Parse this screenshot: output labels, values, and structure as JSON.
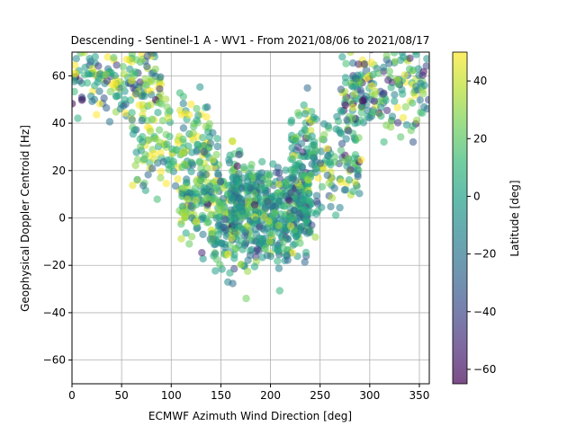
{
  "chart_data": {
    "type": "scatter",
    "title": "Descending - Sentinel-1 A - WV1 - From 2021/08/06 to 2021/08/17",
    "xlabel": "ECMWF Azimuth Wind Direction [deg]",
    "ylabel": "Geophysical Doppler Centroid [Hz]",
    "xlim": [
      0,
      360
    ],
    "ylim": [
      -70,
      70
    ],
    "xticks": [
      0,
      50,
      100,
      150,
      200,
      250,
      300,
      350
    ],
    "yticks": [
      -60,
      -40,
      -20,
      0,
      20,
      40,
      60
    ],
    "grid": true,
    "marker_alpha": 0.55,
    "colorbar": {
      "label": "Latitude [deg]",
      "range": [
        -65,
        50
      ],
      "ticks": [
        -60,
        -40,
        -20,
        0,
        20,
        40
      ],
      "colormap": "viridis",
      "colors": [
        "#440154",
        "#482878",
        "#3e4a89",
        "#31688e",
        "#26828e",
        "#1f9e89",
        "#35b779",
        "#6ece58",
        "#b5de2b",
        "#fde725"
      ]
    },
    "point_clusters": [
      {
        "x_range": [
          0,
          90
        ],
        "y_center": 58,
        "y_spread": 8,
        "lat_center": 10,
        "lat_spread": 35,
        "count": 170
      },
      {
        "x_range": [
          60,
          140
        ],
        "y_center": 32,
        "y_spread": 10,
        "lat_center": 20,
        "lat_spread": 25,
        "count": 170
      },
      {
        "x_range": [
          110,
          170
        ],
        "y_center": 8,
        "y_spread": 10,
        "lat_center": 10,
        "lat_spread": 25,
        "count": 240
      },
      {
        "x_range": [
          160,
          240
        ],
        "y_center": 4,
        "y_spread": 9,
        "lat_center": -5,
        "lat_spread": 20,
        "count": 440
      },
      {
        "x_range": [
          140,
          230
        ],
        "y_center": -12,
        "y_spread": 7,
        "lat_center": 0,
        "lat_spread": 20,
        "count": 90
      },
      {
        "x_range": [
          220,
          290
        ],
        "y_center": 25,
        "y_spread": 11,
        "lat_center": 0,
        "lat_spread": 25,
        "count": 200
      },
      {
        "x_range": [
          270,
          360
        ],
        "y_center": 55,
        "y_spread": 9,
        "lat_center": 5,
        "lat_spread": 35,
        "count": 200
      }
    ]
  }
}
